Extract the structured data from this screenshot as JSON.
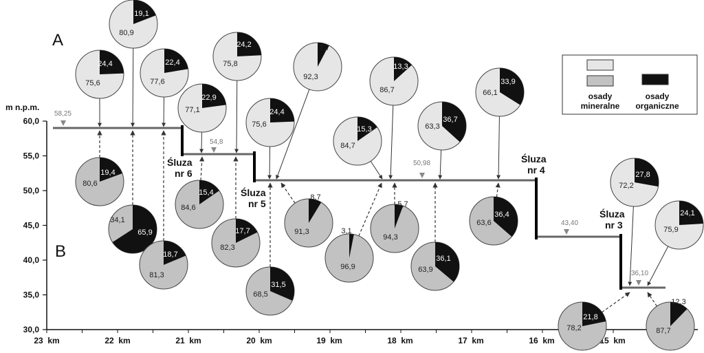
{
  "y_axis": {
    "unit": "m n.p.m.",
    "ticks": [
      "60,0",
      "55,0",
      "50,0",
      "45,0",
      "40,0",
      "35,0",
      "30,0"
    ]
  },
  "x_axis": {
    "ticks": [
      "23  km",
      "22  km",
      "21  km",
      "20  km",
      "19  km",
      "18  km",
      "17  km",
      "16  km",
      "15  km"
    ]
  },
  "panels": {
    "a": "A",
    "b": "B"
  },
  "locks": [
    {
      "line1": "Śluza",
      "line2": "nr 6"
    },
    {
      "line1": "Śluza",
      "line2": "nr 5"
    },
    {
      "line1": "Śluza",
      "line2": "nr 4"
    },
    {
      "line1": "Śluza",
      "line2": "nr 3"
    }
  ],
  "water_levels": [
    "58,25",
    "54,8",
    "50,98",
    "43,40",
    "36,10"
  ],
  "legend": {
    "mineral_line1": "osady",
    "mineral_line2": "mineralne",
    "organic_line1": "osady",
    "organic_line2": "organiczne",
    "colors": {
      "mineral_a": "#e6e6e6",
      "mineral_b": "#c2c2c2",
      "organic": "#111111"
    }
  },
  "pies_a": [
    {
      "mineral": "75,6",
      "organic": "24,4"
    },
    {
      "mineral": "80,9",
      "organic": "19,1"
    },
    {
      "mineral": "77,6",
      "organic": "22,4"
    },
    {
      "mineral": "77,1",
      "organic": "22,9"
    },
    {
      "mineral": "75,8",
      "organic": "24,2"
    },
    {
      "mineral": "75,6",
      "organic": "24,4"
    },
    {
      "mineral": "92,3",
      "organic": "7,7"
    },
    {
      "mineral": "84,7",
      "organic": "15,3"
    },
    {
      "mineral": "86,7",
      "organic": "13,3"
    },
    {
      "mineral": "63,3",
      "organic": "36,7"
    },
    {
      "mineral": "66,1",
      "organic": "33,9"
    },
    {
      "mineral": "72,2",
      "organic": "27,8"
    },
    {
      "mineral": "75,9",
      "organic": "24,1"
    }
  ],
  "pies_b": [
    {
      "mineral": "80,6",
      "organic": "19,4"
    },
    {
      "mineral": "34,1",
      "organic": "65,9"
    },
    {
      "mineral": "81,3",
      "organic": "18,7"
    },
    {
      "mineral": "84,6",
      "organic": "15,4"
    },
    {
      "mineral": "82,3",
      "organic": "17,7"
    },
    {
      "mineral": "68,5",
      "organic": "31,5"
    },
    {
      "mineral": "91,3",
      "organic": "8,7"
    },
    {
      "mineral": "96,9",
      "organic": "3,1"
    },
    {
      "mineral": "94,3",
      "organic": "5,7"
    },
    {
      "mineral": "63,9",
      "organic": "36,1"
    },
    {
      "mineral": "63,6",
      "organic": "36,4"
    },
    {
      "mineral": "78,2",
      "organic": "21,8"
    },
    {
      "mineral": "87,7",
      "organic": "12,3"
    }
  ]
}
